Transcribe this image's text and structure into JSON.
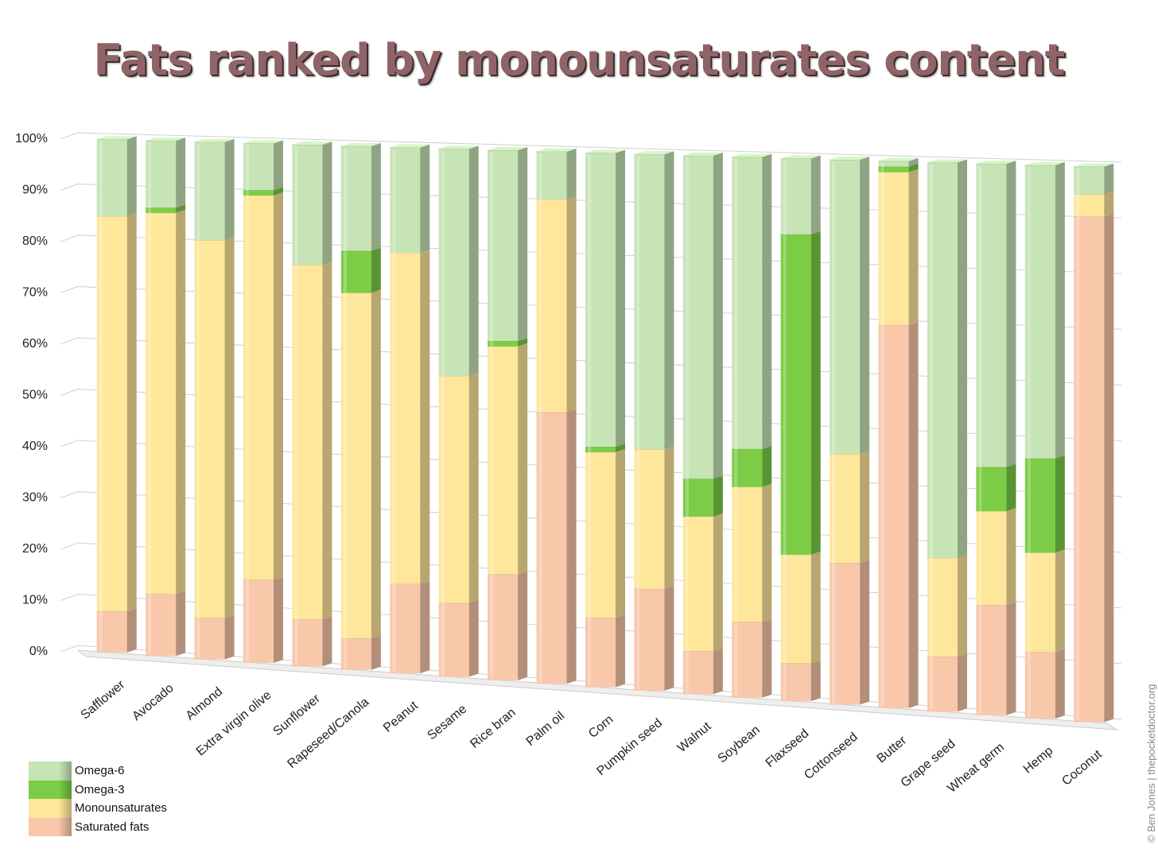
{
  "title": "Fats ranked by monounsaturates content",
  "copyright": "© Ben Jones | thepocketdoctor.org",
  "colors": {
    "omega6": "#c7e4b6",
    "omega3": "#7ccd45",
    "mono": "#fee79b",
    "saturated": "#f9c7aa"
  },
  "chart_data": {
    "type": "bar",
    "stacked": true,
    "title": "Fats ranked by monounsaturates content",
    "xlabel": "",
    "ylabel": "",
    "ylim": [
      0,
      100
    ],
    "yticks": [
      "0%",
      "10%",
      "20%",
      "30%",
      "40%",
      "50%",
      "60%",
      "70%",
      "80%",
      "90%",
      "100%"
    ],
    "grid": true,
    "legend_position": "bottom-left",
    "categories": [
      "Safflower",
      "Avocado",
      "Almond",
      "Extra virgin olive",
      "Sunflower",
      "Rapeseed/Canola",
      "Peanut",
      "Sesame",
      "Rice bran",
      "Palm oil",
      "Corn",
      "Pumpkin seed",
      "Walnut",
      "Soybean",
      "Flaxseed",
      "Cottonseed",
      "Butter",
      "Grape seed",
      "Wheat germ",
      "Hemp",
      "Coconut"
    ],
    "series": [
      {
        "name": "Saturated fats",
        "key": "saturated",
        "values": [
          8,
          12,
          8,
          16,
          9,
          6,
          17,
          14,
          20,
          51,
          13,
          19,
          8,
          14,
          7,
          26,
          70,
          10,
          20,
          12,
          91
        ]
      },
      {
        "name": "Monounsaturates",
        "key": "mono",
        "values": [
          77,
          74,
          73,
          74,
          68,
          66,
          63,
          43,
          43,
          40,
          31,
          26,
          25,
          25,
          20,
          20,
          28,
          18,
          17,
          18,
          4
        ]
      },
      {
        "name": "Omega-3",
        "key": "omega3",
        "values": [
          0,
          1,
          0,
          1,
          0,
          8,
          0,
          0,
          1,
          0,
          1,
          0,
          7,
          7,
          59,
          0,
          1,
          0,
          8,
          17,
          0
        ]
      },
      {
        "name": "Omega-6",
        "key": "omega6",
        "values": [
          15,
          13,
          19,
          9,
          23,
          20,
          20,
          43,
          36,
          9,
          55,
          55,
          60,
          54,
          14,
          54,
          1,
          72,
          55,
          53,
          5
        ]
      }
    ]
  },
  "legend": [
    {
      "label": "Omega-6",
      "key": "omega6"
    },
    {
      "label": "Omega-3",
      "key": "omega3"
    },
    {
      "label": "Monounsaturates",
      "key": "mono"
    },
    {
      "label": "Saturated fats",
      "key": "saturated"
    }
  ]
}
